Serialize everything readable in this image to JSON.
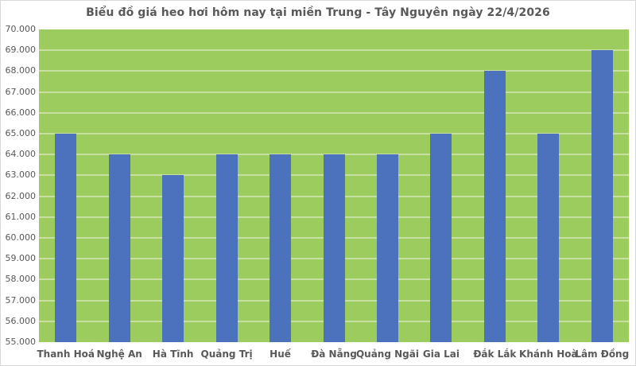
{
  "chart_data": {
    "type": "bar",
    "title": "Biểu đồ giá heo hơi hôm nay tại miền Trung - Tây Nguyên ngày 22/4/2026",
    "categories": [
      "Thanh Hoá",
      "Nghệ An",
      "Hà Tĩnh",
      "Quảng Trị",
      "Huế",
      "Đà Nẵng",
      "Quảng Ngãi",
      "Gia Lai",
      "Đắk Lắk",
      "Khánh Hoà",
      "Lâm Đồng"
    ],
    "values": [
      65000,
      64000,
      63000,
      64000,
      64000,
      64000,
      64000,
      65000,
      68000,
      65000,
      69000
    ],
    "xlabel": "",
    "ylabel": "",
    "ylim": [
      55000,
      70000
    ],
    "ytick_step": 1000,
    "ytick_labels_top_to_bottom": [
      "70.000",
      "69.000",
      "68.000",
      "67.000",
      "66.000",
      "65.000",
      "64.000",
      "63.000",
      "62.000",
      "61.000",
      "60.000",
      "59.000",
      "58.000",
      "57.000",
      "56.000",
      "55.000"
    ],
    "grid": true,
    "legend": false,
    "colors": {
      "bar": "#4C72BE",
      "plot_background": "#9CCB5E",
      "gridline": "#C8DFA2",
      "text": "#595959",
      "frame_border": "#D9D9D9",
      "background": "#FFFFFF"
    }
  }
}
